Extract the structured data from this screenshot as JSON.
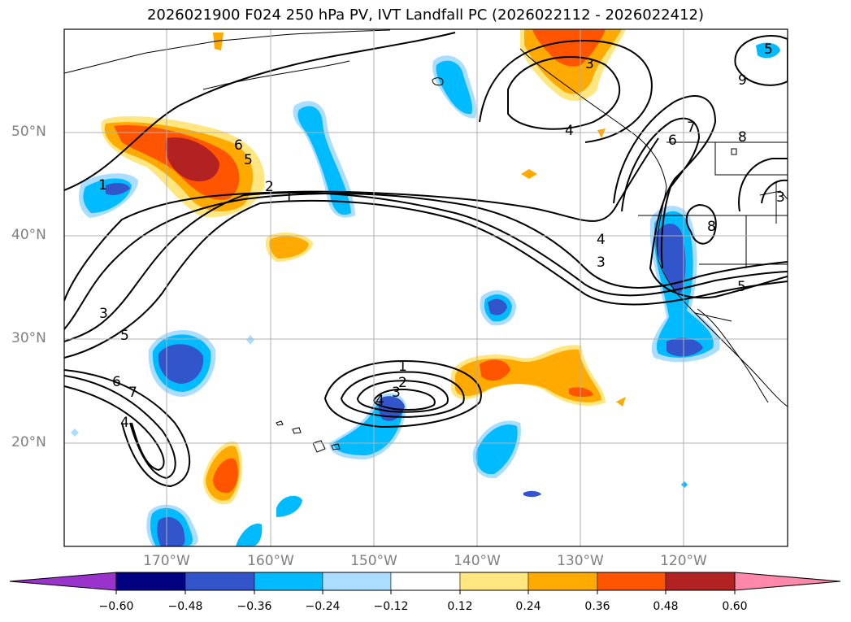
{
  "title": "2026021900 F024 250 hPa PV, IVT Landfall PC (2026022112 - 2026022412)",
  "lat_labels": [
    "50°N",
    "40°N",
    "30°N",
    "20°N"
  ],
  "lon_labels": [
    "170°W",
    "160°W",
    "150°W",
    "140°W",
    "130°W",
    "120°W"
  ],
  "contour_labels": [
    "1",
    "6",
    "5",
    "2",
    "1",
    "3",
    "3",
    "4",
    "4",
    "3",
    "6",
    "5",
    "7",
    "8",
    "9",
    "8",
    "5",
    "3",
    "5",
    "6",
    "7",
    "4",
    "1",
    "2",
    "3",
    "4"
  ],
  "colorbar": {
    "tick_labels": [
      "−0.60",
      "−0.48",
      "−0.36",
      "−0.24",
      "−0.12",
      "0.12",
      "0.24",
      "0.36",
      "0.48",
      "0.60"
    ],
    "colors": [
      "#9933cc",
      "#000080",
      "#3355cc",
      "#00bbff",
      "#aaddff",
      "#ffffff",
      "#ffe680",
      "#ffaa00",
      "#ff5500",
      "#b22222",
      "#ff88aa"
    ]
  }
}
